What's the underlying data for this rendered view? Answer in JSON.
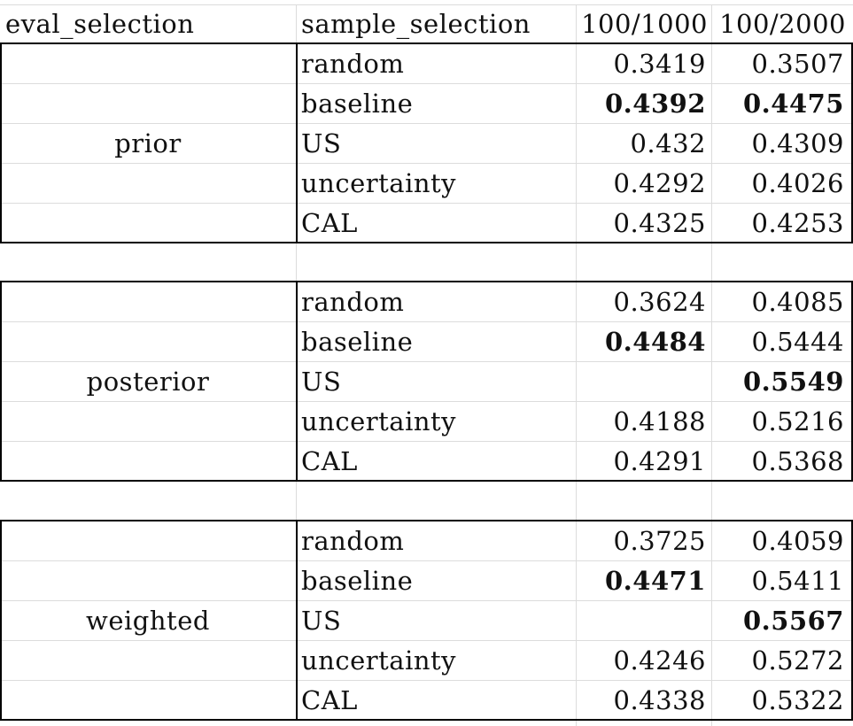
{
  "header": [
    "eval_selection",
    "sample_selection",
    "100/1000",
    "100/2000"
  ],
  "groups": [
    {
      "eval_selection": "prior",
      "rows": [
        {
          "sample_selection": "random",
          "v1000": "0.3419",
          "v2000": "0.3507",
          "bold1000": false,
          "bold2000": false
        },
        {
          "sample_selection": "baseline",
          "v1000": "0.4392",
          "v2000": "0.4475",
          "bold1000": true,
          "bold2000": true
        },
        {
          "sample_selection": "US",
          "v1000": "0.432",
          "v2000": "0.4309",
          "bold1000": false,
          "bold2000": false
        },
        {
          "sample_selection": "uncertainty",
          "v1000": "0.4292",
          "v2000": "0.4026",
          "bold1000": false,
          "bold2000": false
        },
        {
          "sample_selection": "CAL",
          "v1000": "0.4325",
          "v2000": "0.4253",
          "bold1000": false,
          "bold2000": false
        }
      ]
    },
    {
      "eval_selection": "posterior",
      "rows": [
        {
          "sample_selection": "random",
          "v1000": "0.3624",
          "v2000": "0.4085",
          "bold1000": false,
          "bold2000": false
        },
        {
          "sample_selection": "baseline",
          "v1000": "0.4484",
          "v2000": "0.5444",
          "bold1000": true,
          "bold2000": false
        },
        {
          "sample_selection": "US",
          "v1000": "",
          "v2000": "0.5549",
          "bold1000": false,
          "bold2000": true
        },
        {
          "sample_selection": "uncertainty",
          "v1000": "0.4188",
          "v2000": "0.5216",
          "bold1000": false,
          "bold2000": false
        },
        {
          "sample_selection": "CAL",
          "v1000": "0.4291",
          "v2000": "0.5368",
          "bold1000": false,
          "bold2000": false
        }
      ]
    },
    {
      "eval_selection": "weighted",
      "rows": [
        {
          "sample_selection": "random",
          "v1000": "0.3725",
          "v2000": "0.4059",
          "bold1000": false,
          "bold2000": false
        },
        {
          "sample_selection": "baseline",
          "v1000": "0.4471",
          "v2000": "0.5411",
          "bold1000": true,
          "bold2000": false
        },
        {
          "sample_selection": "US",
          "v1000": "",
          "v2000": "0.5567",
          "bold1000": false,
          "bold2000": true
        },
        {
          "sample_selection": "uncertainty",
          "v1000": "0.4246",
          "v2000": "0.5272",
          "bold1000": false,
          "bold2000": false
        },
        {
          "sample_selection": "CAL",
          "v1000": "0.4338",
          "v2000": "0.5322",
          "bold1000": false,
          "bold2000": false
        }
      ]
    }
  ]
}
